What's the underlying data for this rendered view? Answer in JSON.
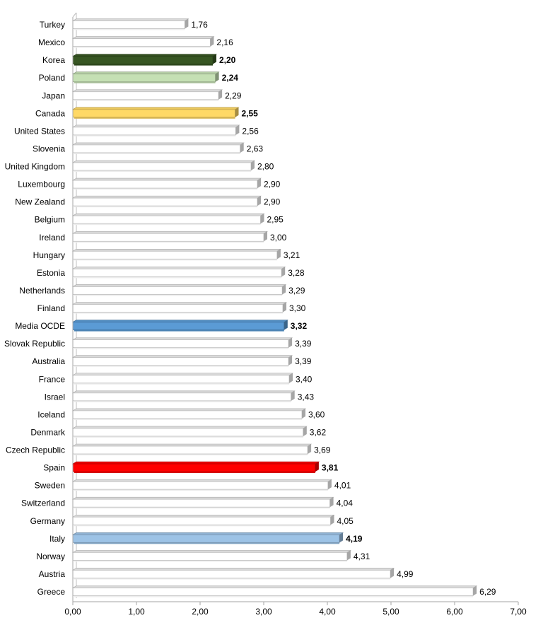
{
  "chart_data": {
    "type": "bar",
    "orientation": "horizontal",
    "title": "",
    "xlabel": "",
    "ylabel": "",
    "xlim": [
      0,
      7
    ],
    "x_ticks": [
      "0,00",
      "1,00",
      "2,00",
      "3,00",
      "4,00",
      "5,00",
      "6,00",
      "7,00"
    ],
    "grid": false,
    "legend": "none",
    "default_color": "#ffffff",
    "categories": [
      "Turkey",
      "Mexico",
      "Korea",
      "Poland",
      "Japan",
      "Canada",
      "United States",
      "Slovenia",
      "United Kingdom",
      "Luxembourg",
      "New Zealand",
      "Belgium",
      "Ireland",
      "Hungary",
      "Estonia",
      "Netherlands",
      "Finland",
      "Media OCDE",
      "Slovak Republic",
      "Australia",
      "France",
      "Israel",
      "Iceland",
      "Denmark",
      "Czech Republic",
      "Spain",
      "Sweden",
      "Switzerland",
      "Germany",
      "Italy",
      "Norway",
      "Austria",
      "Greece"
    ],
    "values": [
      1.76,
      2.16,
      2.2,
      2.24,
      2.29,
      2.55,
      2.56,
      2.63,
      2.8,
      2.9,
      2.9,
      2.95,
      3.0,
      3.21,
      3.28,
      3.29,
      3.3,
      3.32,
      3.39,
      3.39,
      3.4,
      3.43,
      3.6,
      3.62,
      3.69,
      3.81,
      4.01,
      4.04,
      4.05,
      4.19,
      4.31,
      4.99,
      6.29
    ],
    "value_labels": [
      "1,76",
      "2,16",
      "2,20",
      "2,24",
      "2,29",
      "2,55",
      "2,56",
      "2,63",
      "2,80",
      "2,90",
      "2,90",
      "2,95",
      "3,00",
      "3,21",
      "3,28",
      "3,29",
      "3,30",
      "3,32",
      "3,39",
      "3,39",
      "3,40",
      "3,43",
      "3,60",
      "3,62",
      "3,69",
      "3,81",
      "4,01",
      "4,04",
      "4,05",
      "4,19",
      "4,31",
      "4,99",
      "6,29"
    ],
    "highlights": [
      {
        "category": "Korea",
        "color": "#375623"
      },
      {
        "category": "Poland",
        "color": "#c5e0b4"
      },
      {
        "category": "Canada",
        "color": "#ffd966"
      },
      {
        "category": "Media OCDE",
        "color": "#5b9bd5"
      },
      {
        "category": "Spain",
        "color": "#ff0000"
      },
      {
        "category": "Italy",
        "color": "#9dc3e6"
      }
    ]
  }
}
